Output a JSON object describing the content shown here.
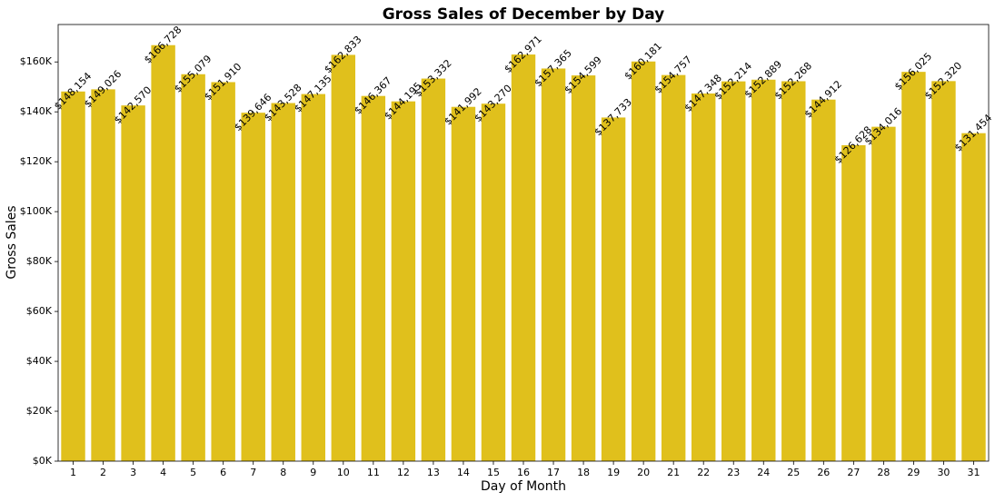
{
  "chart_data": {
    "type": "bar",
    "title": "Gross Sales of December by Day",
    "xlabel": "Day of Month",
    "ylabel": "Gross Sales",
    "ylim": [
      0,
      175000
    ],
    "yticks": [
      0,
      20000,
      40000,
      60000,
      80000,
      100000,
      120000,
      140000,
      160000
    ],
    "ytick_labels": [
      "$0K",
      "$20K",
      "$40K",
      "$60K",
      "$80K",
      "$100K",
      "$120K",
      "$140K",
      "$160K"
    ],
    "bar_color": "#e0c01c",
    "grid": false,
    "categories": [
      "1",
      "2",
      "3",
      "4",
      "5",
      "6",
      "7",
      "8",
      "9",
      "10",
      "11",
      "12",
      "13",
      "14",
      "15",
      "16",
      "17",
      "18",
      "19",
      "20",
      "21",
      "22",
      "23",
      "24",
      "25",
      "26",
      "27",
      "28",
      "29",
      "30",
      "31"
    ],
    "values": [
      148154,
      149026,
      142570,
      166728,
      155079,
      151910,
      139646,
      143528,
      147135,
      162833,
      146367,
      144195,
      153332,
      141992,
      143270,
      162971,
      157365,
      154599,
      137733,
      160181,
      154757,
      147348,
      152214,
      152889,
      152268,
      144912,
      126628,
      134016,
      156025,
      152320,
      131454
    ],
    "data_labels": [
      "$148,154",
      "$149,026",
      "$142,570",
      "$166,728",
      "$155,079",
      "$151,910",
      "$139,646",
      "$143,528",
      "$147,135",
      "$162,833",
      "$146,367",
      "$144,195",
      "$153,332",
      "$141,992",
      "$143,270",
      "$162,971",
      "$157,365",
      "$154,599",
      "$137,733",
      "$160,181",
      "$154,757",
      "$147,348",
      "$152,214",
      "$152,889",
      "$152,268",
      "$144,912",
      "$126,628",
      "$134,016",
      "$156,025",
      "$152,320",
      "$131,454"
    ]
  }
}
